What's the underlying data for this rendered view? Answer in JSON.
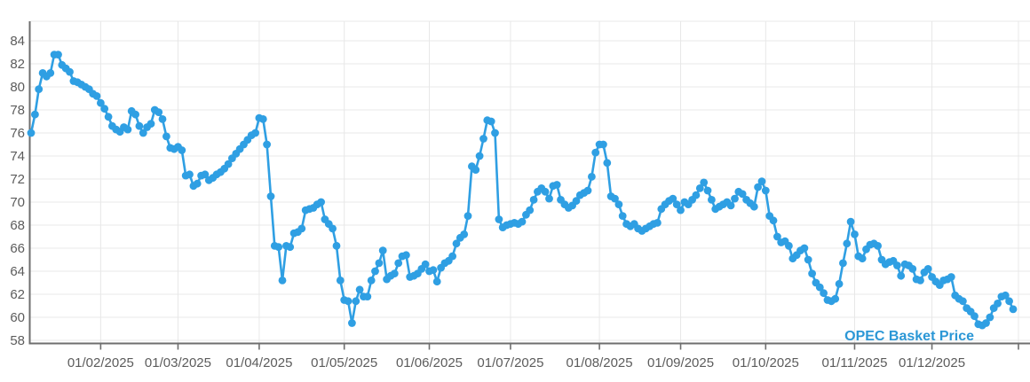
{
  "chart": {
    "series_label": "OPEC Basket Price",
    "colors": {
      "line": "#2F9FE3",
      "marker": "#2F9FE3",
      "series_label_text": "#2B97D6",
      "gridline": "#E8E8E8",
      "axis": "#6E6E6E",
      "tick_label": "#5C5C5C",
      "background": "#FFFFFF"
    }
  },
  "chart_data": {
    "type": "line",
    "title": "",
    "series_name": "OPEC Basket Price",
    "grid": true,
    "legend_position": "inside-bottom-right",
    "ylim": [
      58,
      85.7
    ],
    "yticks": [
      84,
      82,
      80,
      78,
      76,
      74,
      72,
      70,
      68,
      66,
      64,
      62,
      60,
      58
    ],
    "x_tick_labels": [
      "01/02/2025",
      "01/03/2025",
      "01/04/2025",
      "01/05/2025",
      "01/06/2025",
      "01/07/2025",
      "01/08/2025",
      "01/09/2025",
      "01/10/2025",
      "01/11/2025",
      "01/12/2025"
    ],
    "months": [
      {
        "month": "01/2025",
        "values": [
          76.0,
          77.6,
          79.8,
          81.2,
          80.9,
          81.2,
          82.8,
          82.8,
          81.9,
          81.6,
          81.3,
          80.5,
          80.4,
          80.2,
          80.0,
          79.8,
          79.4,
          79.2
        ]
      },
      {
        "month": "02/2025",
        "values": [
          78.6,
          78.1,
          77.4,
          76.6,
          76.3,
          76.1,
          76.5,
          76.3,
          77.9,
          77.6,
          76.6,
          76.0,
          76.5,
          76.8,
          78.0,
          77.8,
          77.2,
          75.7,
          74.7,
          74.6
        ]
      },
      {
        "month": "03/2025",
        "values": [
          74.8,
          74.5,
          72.3,
          72.4,
          71.4,
          71.6,
          72.3,
          72.4,
          71.9,
          72.1,
          72.4,
          72.6,
          72.9,
          73.3,
          73.8,
          74.2,
          74.6,
          75.0,
          75.4,
          75.8,
          76.0
        ]
      },
      {
        "month": "04/2025",
        "values": [
          77.3,
          77.2,
          75.0,
          70.5,
          66.2,
          66.1,
          63.2,
          66.2,
          66.1,
          67.3,
          67.4,
          67.7,
          69.3,
          69.4,
          69.5,
          69.8,
          70.0,
          68.5,
          68.1,
          67.7,
          66.2,
          63.2
        ]
      },
      {
        "month": "05/2025",
        "values": [
          61.5,
          61.4,
          59.5,
          61.4,
          62.4,
          61.8,
          61.8,
          63.2,
          64.0,
          64.7,
          65.8,
          63.3,
          63.6,
          63.8,
          64.7,
          65.3,
          65.4,
          63.5,
          63.6,
          63.8,
          64.2,
          64.6
        ]
      },
      {
        "month": "06/2025",
        "values": [
          64.0,
          64.1,
          63.1,
          64.3,
          64.7,
          64.9,
          65.3,
          66.4,
          66.9,
          67.2,
          68.8,
          73.1,
          72.8,
          74.0,
          75.5,
          77.1,
          77.0,
          76.0,
          68.5,
          67.8,
          68.0
        ]
      },
      {
        "month": "07/2025",
        "values": [
          68.1,
          68.2,
          68.1,
          68.3,
          68.9,
          69.3,
          70.2,
          70.9,
          71.2,
          70.9,
          70.3,
          71.4,
          71.5,
          70.2,
          69.8,
          69.5,
          69.7,
          70.1,
          70.6,
          70.8,
          71.0,
          72.2,
          74.3
        ]
      },
      {
        "month": "08/2025",
        "values": [
          75.0,
          75.0,
          73.4,
          70.5,
          70.3,
          69.8,
          68.8,
          68.1,
          67.9,
          68.1,
          67.7,
          67.5,
          67.7,
          67.9,
          68.1,
          68.2,
          69.4,
          69.8,
          70.1,
          70.3,
          69.8
        ]
      },
      {
        "month": "09/2025",
        "values": [
          69.3,
          70.0,
          69.8,
          70.2,
          70.6,
          71.2,
          71.7,
          71.0,
          70.2,
          69.4,
          69.6,
          69.8,
          70.0,
          69.7,
          70.3,
          70.9,
          70.7,
          70.2,
          69.9,
          69.6,
          71.3,
          71.8
        ]
      },
      {
        "month": "10/2025",
        "values": [
          71.0,
          68.8,
          68.4,
          67.0,
          66.5,
          66.6,
          66.2,
          65.1,
          65.4,
          65.8,
          66.0,
          65.0,
          63.8,
          63.0,
          62.6,
          62.1,
          61.5,
          61.4,
          61.6,
          62.9,
          64.7,
          66.4,
          68.3
        ]
      },
      {
        "month": "11/2025",
        "values": [
          67.2,
          65.3,
          65.1,
          65.9,
          66.3,
          66.4,
          66.2,
          65.0,
          64.6,
          64.8,
          64.9,
          64.5,
          63.6,
          64.6,
          64.5,
          64.2,
          63.3,
          63.2,
          63.9,
          64.2
        ]
      },
      {
        "month": "12/2025",
        "values": [
          63.5,
          63.1,
          62.8,
          63.2,
          63.3,
          63.5,
          61.9,
          61.6,
          61.4,
          60.8,
          60.5,
          60.1,
          59.4,
          59.3,
          59.5,
          60.0,
          60.8,
          61.2,
          61.8,
          61.9,
          61.4,
          60.7
        ]
      }
    ]
  }
}
